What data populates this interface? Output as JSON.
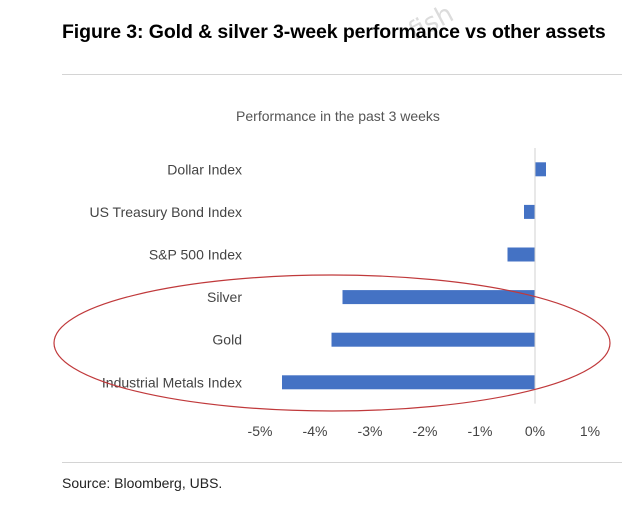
{
  "figure": {
    "title": "Figure 3: Gold & silver 3-week performance vs other assets",
    "source": "Source: Bloomberg, UBS.",
    "watermark": "fish"
  },
  "chart_data": {
    "type": "bar",
    "orientation": "horizontal",
    "title": "Performance in the past 3 weeks",
    "categories": [
      "Dollar Index",
      "US Treasury Bond Index",
      "S&P 500 Index",
      "Silver",
      "Gold",
      "Industrial Metals Index"
    ],
    "values": [
      0.2,
      -0.2,
      -0.5,
      -3.5,
      -3.7,
      -4.6
    ],
    "unit": "%",
    "xlim": [
      -5,
      1
    ],
    "xticks": [
      "-5%",
      "-4%",
      "-3%",
      "-2%",
      "-1%",
      "0%",
      "1%"
    ],
    "xtick_values": [
      -5,
      -4,
      -3,
      -2,
      -1,
      0,
      1
    ],
    "bar_color": "#4472c4",
    "grid": false,
    "annotation": "red ellipse highlighting Silver, Gold and Industrial Metals Index",
    "annotation_color": "#c0393b"
  }
}
